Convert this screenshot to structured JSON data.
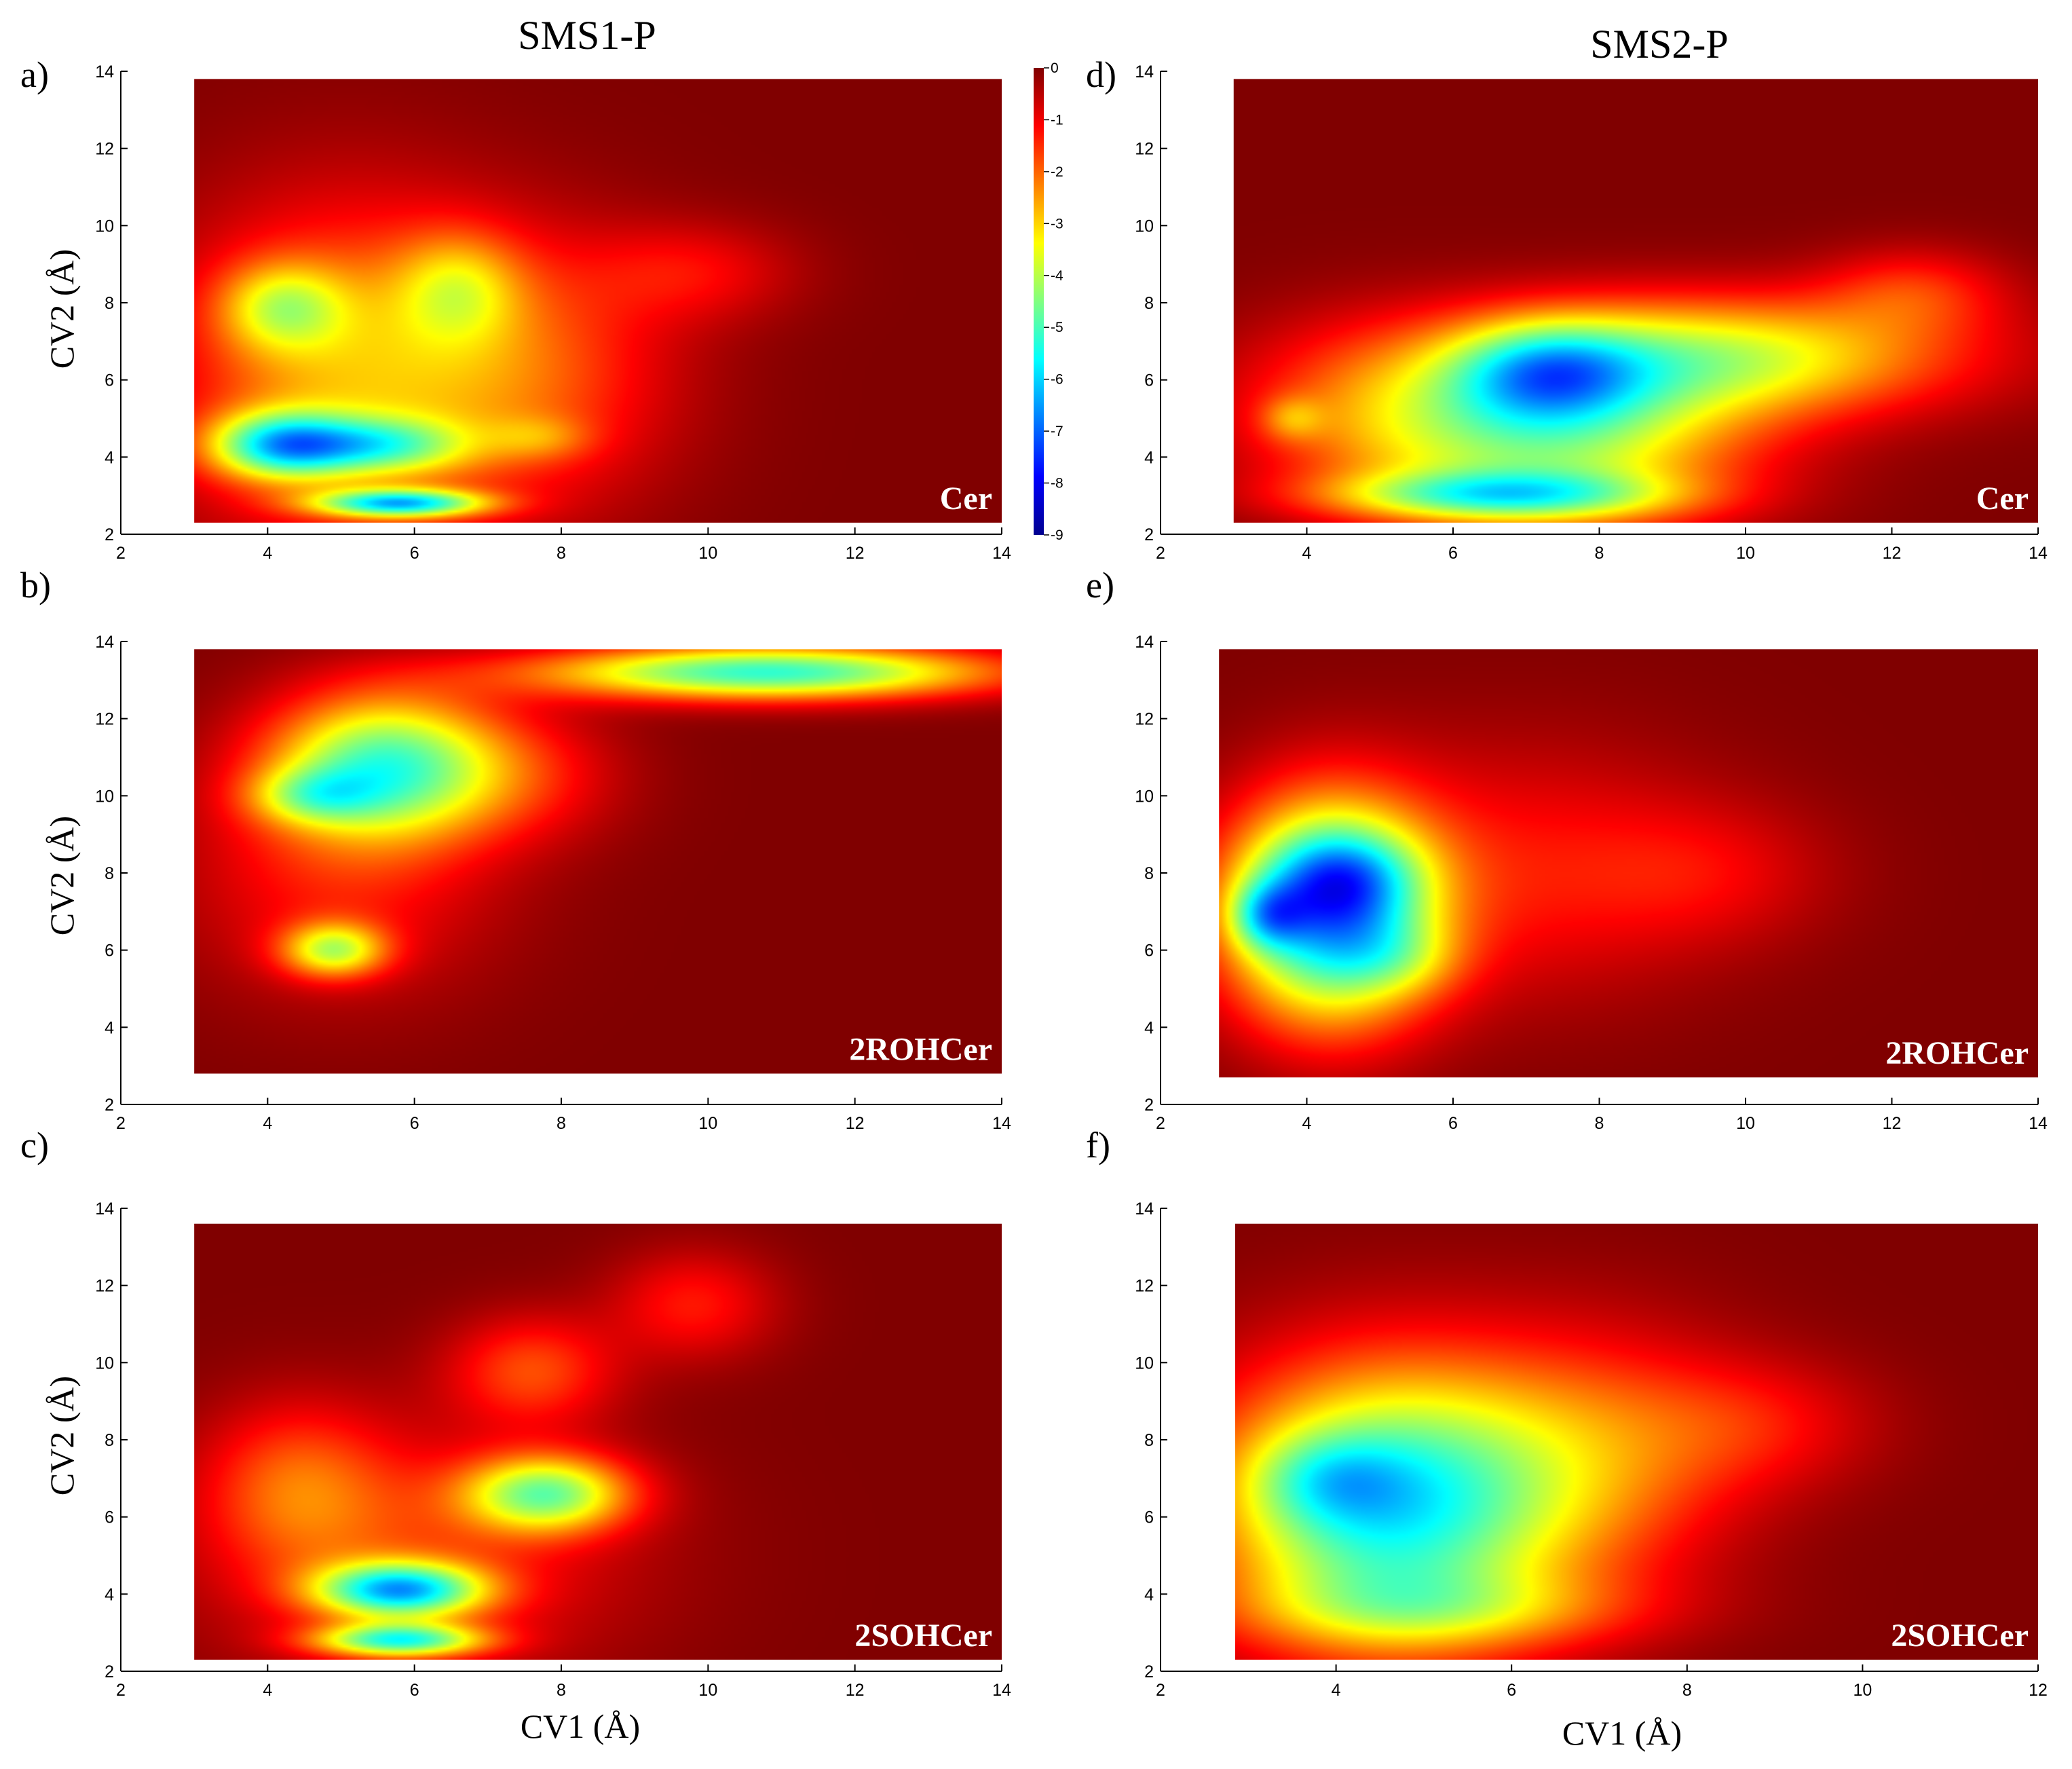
{
  "figure": {
    "column_titles": [
      "SMS1-P",
      "SMS2-P"
    ],
    "colormap": "jet",
    "colors": {
      "background": "#800000",
      "axis": "#000000",
      "label_text": "#ffffff"
    },
    "colorbar": {
      "ticks": [
        "0",
        "-1",
        "-2",
        "-3",
        "-4",
        "-5",
        "-6",
        "-7",
        "-8",
        "-9"
      ],
      "range": [
        -9,
        0
      ]
    }
  },
  "chart_data": [
    {
      "type": "heatmap",
      "panel": "a)",
      "label": "Cer",
      "ylabel": "CV2 (Å)",
      "xlabel": "",
      "xlim": [
        2,
        14
      ],
      "ylim": [
        2,
        14
      ],
      "xticks": [
        "2",
        "4",
        "6",
        "8",
        "10",
        "12",
        "14"
      ],
      "yticks": [
        "2",
        "4",
        "6",
        "8",
        "10",
        "12",
        "14"
      ],
      "data_region": {
        "x": [
          3,
          14
        ],
        "y": [
          2.3,
          13.8
        ]
      },
      "basins": [
        {
          "x": 5.0,
          "y": 6.2,
          "sx": 1.6,
          "sy": 3.0,
          "v": -2.5
        },
        {
          "x": 7.6,
          "y": 6.2,
          "sx": 1.4,
          "sy": 2.4,
          "v": -1.6
        },
        {
          "x": 9.8,
          "y": 8.8,
          "sx": 1.0,
          "sy": 0.9,
          "v": -1.0
        },
        {
          "x": 4.2,
          "y": 7.9,
          "sx": 0.6,
          "sy": 0.8,
          "v": -2.3
        },
        {
          "x": 6.6,
          "y": 8.4,
          "sx": 0.6,
          "sy": 1.0,
          "v": -1.8
        },
        {
          "x": 4.2,
          "y": 4.3,
          "sx": 0.7,
          "sy": 0.6,
          "v": -4.5
        },
        {
          "x": 5.6,
          "y": 4.3,
          "sx": 0.8,
          "sy": 0.5,
          "v": -2.8
        },
        {
          "x": 5.8,
          "y": 2.8,
          "sx": 0.8,
          "sy": 0.25,
          "v": -5.0
        },
        {
          "x": 7.7,
          "y": 4.5,
          "sx": 0.5,
          "sy": 0.4,
          "v": -1.0
        }
      ]
    },
    {
      "type": "heatmap",
      "panel": "b)",
      "label": "2ROHCer",
      "ylabel": "CV2 (Å)",
      "xlabel": "",
      "xlim": [
        2,
        14
      ],
      "ylim": [
        2,
        14
      ],
      "xticks": [
        "2",
        "4",
        "6",
        "8",
        "10",
        "12",
        "14"
      ],
      "yticks": [
        "2",
        "4",
        "6",
        "8",
        "10",
        "12",
        "14"
      ],
      "data_region": {
        "x": [
          3,
          14
        ],
        "y": [
          2.8,
          13.8
        ]
      },
      "basins": [
        {
          "x": 5.6,
          "y": 10.8,
          "sx": 1.1,
          "sy": 1.3,
          "v": -4.6
        },
        {
          "x": 4.6,
          "y": 10.0,
          "sx": 0.6,
          "sy": 0.5,
          "v": -2.0
        },
        {
          "x": 10.8,
          "y": 13.2,
          "sx": 2.2,
          "sy": 0.5,
          "v": -5.2
        },
        {
          "x": 4.9,
          "y": 6.0,
          "sx": 0.5,
          "sy": 0.5,
          "v": -3.3
        },
        {
          "x": 5.0,
          "y": 8.0,
          "sx": 1.5,
          "sy": 2.2,
          "v": -1.3
        },
        {
          "x": 7.5,
          "y": 10.5,
          "sx": 1.0,
          "sy": 1.2,
          "v": -1.0
        }
      ]
    },
    {
      "type": "heatmap",
      "panel": "c)",
      "label": "2SOHCer",
      "ylabel": "CV2 (Å)",
      "xlabel": "CV1 (Å)",
      "xlim": [
        2,
        14
      ],
      "ylim": [
        2,
        14
      ],
      "xticks": [
        "2",
        "4",
        "6",
        "8",
        "10",
        "12",
        "14"
      ],
      "yticks": [
        "2",
        "4",
        "6",
        "8",
        "10",
        "12",
        "14"
      ],
      "data_region": {
        "x": [
          3,
          14
        ],
        "y": [
          2.3,
          13.6
        ]
      },
      "basins": [
        {
          "x": 5.8,
          "y": 4.1,
          "sx": 0.8,
          "sy": 0.5,
          "v": -5.3
        },
        {
          "x": 5.8,
          "y": 2.8,
          "sx": 0.8,
          "sy": 0.3,
          "v": -4.6
        },
        {
          "x": 7.8,
          "y": 6.6,
          "sx": 0.8,
          "sy": 0.7,
          "v": -4.1
        },
        {
          "x": 7.6,
          "y": 9.8,
          "sx": 0.8,
          "sy": 1.0,
          "v": -1.7
        },
        {
          "x": 9.8,
          "y": 11.5,
          "sx": 0.8,
          "sy": 1.0,
          "v": -1.3
        },
        {
          "x": 4.4,
          "y": 6.8,
          "sx": 0.9,
          "sy": 1.5,
          "v": -1.6
        },
        {
          "x": 6.0,
          "y": 5.0,
          "sx": 2.0,
          "sy": 2.2,
          "v": -1.4
        }
      ]
    },
    {
      "type": "heatmap",
      "panel": "d)",
      "label": "Cer",
      "ylabel": "",
      "xlabel": "",
      "xlim": [
        2,
        14
      ],
      "ylim": [
        2,
        14
      ],
      "xticks": [
        "2",
        "4",
        "6",
        "8",
        "10",
        "12",
        "14"
      ],
      "yticks": [
        "2",
        "4",
        "6",
        "8",
        "10",
        "12",
        "14"
      ],
      "data_region": {
        "x": [
          3,
          14
        ],
        "y": [
          2.3,
          13.8
        ]
      },
      "basins": [
        {
          "x": 7.5,
          "y": 4.4,
          "sx": 1.8,
          "sy": 1.6,
          "v": -3.6
        },
        {
          "x": 6.6,
          "y": 3.0,
          "sx": 1.6,
          "sy": 0.45,
          "v": -3.5
        },
        {
          "x": 9.6,
          "y": 6.6,
          "sx": 2.3,
          "sy": 1.1,
          "v": -3.6
        },
        {
          "x": 7.3,
          "y": 6.2,
          "sx": 0.9,
          "sy": 0.9,
          "v": -3.0
        },
        {
          "x": 5.0,
          "y": 5.2,
          "sx": 1.5,
          "sy": 1.6,
          "v": -1.7
        },
        {
          "x": 3.8,
          "y": 5.0,
          "sx": 0.3,
          "sy": 0.4,
          "v": -1.2
        },
        {
          "x": 12.3,
          "y": 8.3,
          "sx": 0.9,
          "sy": 0.8,
          "v": -1.3
        }
      ]
    },
    {
      "type": "heatmap",
      "panel": "e)",
      "label": "2ROHCer",
      "ylabel": "",
      "xlabel": "",
      "xlim": [
        2,
        14
      ],
      "ylim": [
        2,
        14
      ],
      "xticks": [
        "2",
        "4",
        "6",
        "8",
        "10",
        "12",
        "14"
      ],
      "yticks": [
        "2",
        "4",
        "6",
        "8",
        "10",
        "12",
        "14"
      ],
      "data_region": {
        "x": [
          2.8,
          14
        ],
        "y": [
          2.7,
          13.8
        ]
      },
      "basins": [
        {
          "x": 4.3,
          "y": 7.0,
          "sx": 1.0,
          "sy": 2.0,
          "v": -6.3
        },
        {
          "x": 4.5,
          "y": 7.9,
          "sx": 0.7,
          "sy": 0.8,
          "v": -1.8
        },
        {
          "x": 3.45,
          "y": 6.9,
          "sx": 0.35,
          "sy": 0.6,
          "v": -2.3
        },
        {
          "x": 5.3,
          "y": 5.8,
          "sx": 0.6,
          "sy": 0.7,
          "v": -1.0
        },
        {
          "x": 7.0,
          "y": 8.0,
          "sx": 1.8,
          "sy": 2.3,
          "v": -1.2
        },
        {
          "x": 9.5,
          "y": 8.0,
          "sx": 1.2,
          "sy": 1.3,
          "v": -0.8
        }
      ]
    },
    {
      "type": "heatmap",
      "panel": "f)",
      "label": "2SOHCer",
      "ylabel": "",
      "xlabel": "CV1 (Å)",
      "xlim": [
        2,
        12
      ],
      "ylim": [
        2,
        14
      ],
      "xticks": [
        "2",
        "4",
        "6",
        "8",
        "10",
        "12"
      ],
      "yticks": [
        "2",
        "4",
        "6",
        "8",
        "10",
        "12",
        "14"
      ],
      "data_region": {
        "x": [
          2.85,
          12
        ],
        "y": [
          2.3,
          13.6
        ]
      },
      "basins": [
        {
          "x": 4.6,
          "y": 6.3,
          "sx": 1.4,
          "sy": 2.5,
          "v": -5.6
        },
        {
          "x": 3.9,
          "y": 7.0,
          "sx": 0.6,
          "sy": 0.8,
          "v": -1.4
        },
        {
          "x": 5.2,
          "y": 3.6,
          "sx": 1.6,
          "sy": 0.7,
          "v": -1.5
        },
        {
          "x": 7.0,
          "y": 7.5,
          "sx": 1.2,
          "sy": 2.3,
          "v": -1.7
        },
        {
          "x": 8.8,
          "y": 8.4,
          "sx": 1.0,
          "sy": 1.2,
          "v": -1.0
        }
      ]
    }
  ]
}
